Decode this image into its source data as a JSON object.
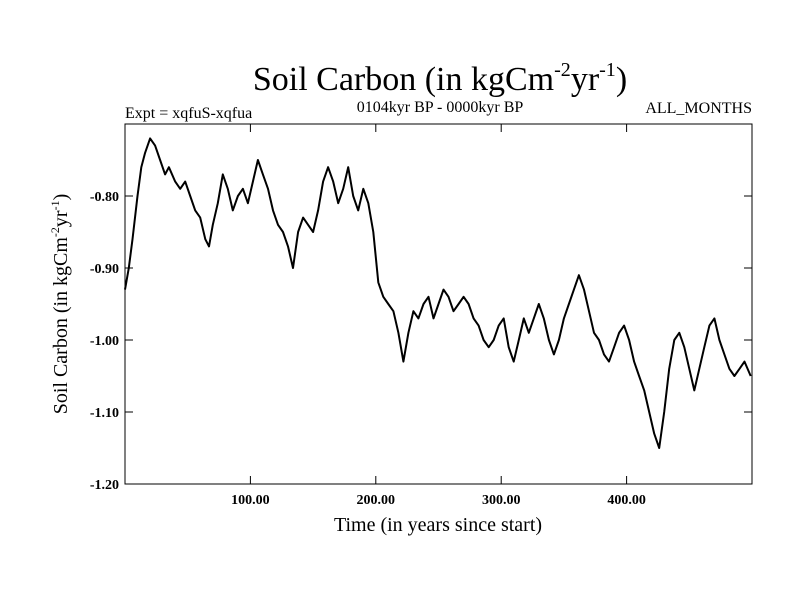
{
  "chart_data": {
    "type": "line",
    "title": {
      "main": "Soil Carbon (in kgCm",
      "exp1": "-2",
      "unit2": "yr",
      "exp2": "-1",
      "close": ")"
    },
    "subtitle_left": "Expt = xqfuS-xqfua",
    "subtitle_center": "0104kyr BP - 0000kyr BP",
    "subtitle_right": "ALL_MONTHS",
    "xlabel": "Time (in years since start)",
    "ylabel": {
      "main": "Soil Carbon (in kgCm",
      "exp1": "-2",
      "unit2": "yr",
      "exp2": "-1",
      "close": ")"
    },
    "xlim": [
      0,
      500
    ],
    "ylim": [
      -1.2,
      -0.7
    ],
    "x_ticks": [
      {
        "value": 100,
        "label": "100.00"
      },
      {
        "value": 200,
        "label": "200.00"
      },
      {
        "value": 300,
        "label": "300.00"
      },
      {
        "value": 400,
        "label": "400.00"
      }
    ],
    "y_ticks": [
      {
        "value": -0.8,
        "label": "-0.80"
      },
      {
        "value": -0.9,
        "label": "-0.90"
      },
      {
        "value": -1.0,
        "label": "-1.00"
      },
      {
        "value": -1.1,
        "label": "-1.10"
      },
      {
        "value": -1.2,
        "label": "-1.20"
      }
    ],
    "series": [
      {
        "name": "Soil Carbon",
        "x": [
          0,
          3,
          6,
          10,
          13,
          16,
          20,
          24,
          28,
          32,
          35,
          40,
          44,
          48,
          52,
          56,
          60,
          64,
          67,
          70,
          74,
          78,
          82,
          86,
          90,
          94,
          98,
          102,
          106,
          110,
          114,
          118,
          122,
          126,
          130,
          134,
          138,
          142,
          146,
          150,
          154,
          158,
          162,
          166,
          170,
          174,
          178,
          182,
          186,
          190,
          194,
          198,
          202,
          206,
          210,
          214,
          218,
          222,
          226,
          230,
          234,
          238,
          242,
          246,
          250,
          254,
          258,
          262,
          266,
          270,
          274,
          278,
          282,
          286,
          290,
          294,
          298,
          302,
          306,
          310,
          314,
          318,
          322,
          326,
          330,
          334,
          338,
          342,
          346,
          350,
          354,
          358,
          362,
          366,
          370,
          374,
          378,
          382,
          386,
          390,
          394,
          398,
          402,
          406,
          410,
          414,
          418,
          422,
          426,
          430,
          434,
          438,
          442,
          446,
          450,
          454,
          458,
          462,
          466,
          470,
          474,
          478,
          482,
          486,
          490,
          494,
          499
        ],
        "y": [
          -0.93,
          -0.9,
          -0.86,
          -0.8,
          -0.76,
          -0.74,
          -0.72,
          -0.73,
          -0.75,
          -0.77,
          -0.76,
          -0.78,
          -0.79,
          -0.78,
          -0.8,
          -0.82,
          -0.83,
          -0.86,
          -0.87,
          -0.84,
          -0.81,
          -0.77,
          -0.79,
          -0.82,
          -0.8,
          -0.79,
          -0.81,
          -0.78,
          -0.75,
          -0.77,
          -0.79,
          -0.82,
          -0.84,
          -0.85,
          -0.87,
          -0.9,
          -0.85,
          -0.83,
          -0.84,
          -0.85,
          -0.82,
          -0.78,
          -0.76,
          -0.78,
          -0.81,
          -0.79,
          -0.76,
          -0.8,
          -0.82,
          -0.79,
          -0.81,
          -0.85,
          -0.92,
          -0.94,
          -0.95,
          -0.96,
          -0.99,
          -1.03,
          -0.99,
          -0.96,
          -0.97,
          -0.95,
          -0.94,
          -0.97,
          -0.95,
          -0.93,
          -0.94,
          -0.96,
          -0.95,
          -0.94,
          -0.95,
          -0.97,
          -0.98,
          -1.0,
          -1.01,
          -1.0,
          -0.98,
          -0.97,
          -1.01,
          -1.03,
          -1.0,
          -0.97,
          -0.99,
          -0.97,
          -0.95,
          -0.97,
          -1.0,
          -1.02,
          -1.0,
          -0.97,
          -0.95,
          -0.93,
          -0.91,
          -0.93,
          -0.96,
          -0.99,
          -1.0,
          -1.02,
          -1.03,
          -1.01,
          -0.99,
          -0.98,
          -1.0,
          -1.03,
          -1.05,
          -1.07,
          -1.1,
          -1.13,
          -1.15,
          -1.1,
          -1.04,
          -1.0,
          -0.99,
          -1.01,
          -1.04,
          -1.07,
          -1.04,
          -1.01,
          -0.98,
          -0.97,
          -1.0,
          -1.02,
          -1.04,
          -1.05,
          -1.04,
          -1.03,
          -1.05
        ]
      }
    ]
  }
}
